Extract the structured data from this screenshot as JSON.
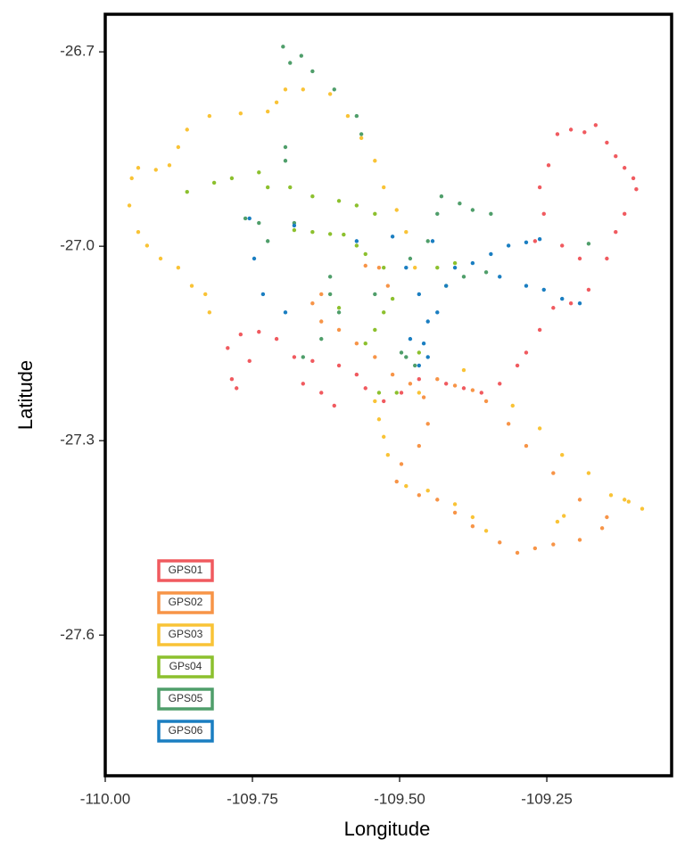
{
  "chart_data": {
    "type": "scatter",
    "x_label": "Longitude",
    "y_label": "Latitude",
    "xlim": [
      -110.0,
      -109.038
    ],
    "ylim": [
      -27.817,
      -26.642
    ],
    "xticks": [
      {
        "value": -110.0,
        "label": "-110.00"
      },
      {
        "value": -109.75,
        "label": "-109.75"
      },
      {
        "value": -109.5,
        "label": "-109.50"
      },
      {
        "value": -109.25,
        "label": "-109.25"
      }
    ],
    "yticks": [
      -26.7,
      {
        "value": -27.0,
        "label": "-27.0"
      },
      -27.3,
      -27.6
    ],
    "grid": false,
    "legend": "bottom-left",
    "series": [
      {
        "name": "GPS01",
        "color": "#f05a5f",
        "x": [
          -109.232,
          -109.209,
          -109.186,
          -109.167,
          -109.148,
          -109.133,
          -109.118,
          -109.103,
          -109.098,
          -109.118,
          -109.133,
          -109.148,
          -109.179,
          -109.209,
          -109.239,
          -109.262,
          -109.285,
          -109.3,
          -109.33,
          -109.361,
          -109.391,
          -109.421,
          -109.467,
          -109.497,
          -109.527,
          -109.573,
          -109.603,
          -109.648,
          -109.679,
          -109.709,
          -109.739,
          -109.77,
          -109.792,
          -109.785,
          -109.777,
          -109.755,
          -109.664,
          -109.633,
          -109.611,
          -109.558,
          -109.27,
          -109.255,
          -109.247,
          -109.262,
          -109.224,
          -109.194
        ],
        "values": [
          -26.827,
          -26.82,
          -26.824,
          -26.813,
          -26.84,
          -26.861,
          -26.879,
          -26.895,
          -26.912,
          -26.95,
          -26.978,
          -27.019,
          -27.067,
          -27.088,
          -27.095,
          -27.129,
          -27.164,
          -27.184,
          -27.212,
          -27.226,
          -27.219,
          -27.212,
          -27.205,
          -27.226,
          -27.239,
          -27.198,
          -27.184,
          -27.177,
          -27.171,
          -27.143,
          -27.132,
          -27.136,
          -27.157,
          -27.205,
          -27.219,
          -27.177,
          -27.212,
          -27.226,
          -27.246,
          -27.219,
          -26.992,
          -26.95,
          -26.875,
          -26.909,
          -26.999,
          -27.019
        ]
      },
      {
        "name": "GPS02",
        "color": "#f79447",
        "x": [
          -109.573,
          -109.558,
          -109.535,
          -109.52,
          -109.633,
          -109.648,
          -109.633,
          -109.603,
          -109.542,
          -109.512,
          -109.482,
          -109.436,
          -109.406,
          -109.376,
          -109.353,
          -109.315,
          -109.285,
          -109.239,
          -109.194,
          -109.148,
          -109.156,
          -109.194,
          -109.239,
          -109.27,
          -109.3,
          -109.33,
          -109.376,
          -109.406,
          -109.436,
          -109.467,
          -109.505,
          -109.497,
          -109.467,
          -109.452,
          -109.459
        ],
        "values": [
          -27.15,
          -27.03,
          -27.033,
          -27.061,
          -27.074,
          -27.088,
          -27.116,
          -27.129,
          -27.171,
          -27.198,
          -27.212,
          -27.205,
          -27.215,
          -27.222,
          -27.239,
          -27.274,
          -27.308,
          -27.35,
          -27.391,
          -27.418,
          -27.435,
          -27.453,
          -27.46,
          -27.466,
          -27.473,
          -27.457,
          -27.432,
          -27.411,
          -27.391,
          -27.384,
          -27.363,
          -27.336,
          -27.308,
          -27.274,
          -27.233
        ]
      },
      {
        "name": "GPS03",
        "color": "#f9c336",
        "x": [
          -109.694,
          -109.709,
          -109.724,
          -109.77,
          -109.823,
          -109.861,
          -109.876,
          -109.891,
          -109.914,
          -109.944,
          -109.955,
          -109.959,
          -109.944,
          -109.929,
          -109.906,
          -109.876,
          -109.853,
          -109.83,
          -109.823,
          -109.664,
          -109.618,
          -109.588,
          -109.565,
          -109.542,
          -109.527,
          -109.505,
          -109.489,
          -109.474,
          -109.542,
          -109.535,
          -109.527,
          -109.52,
          -109.489,
          -109.452,
          -109.406,
          -109.376,
          -109.353,
          -109.232,
          -109.221,
          -109.141,
          -109.111,
          -109.088,
          -109.118,
          -109.179,
          -109.224,
          -109.262,
          -109.308,
          -109.391,
          -109.467
        ],
        "values": [
          -26.758,
          -26.778,
          -26.792,
          -26.795,
          -26.799,
          -26.82,
          -26.847,
          -26.875,
          -26.882,
          -26.879,
          -26.895,
          -26.937,
          -26.978,
          -26.999,
          -27.019,
          -27.033,
          -27.061,
          -27.074,
          -27.102,
          -26.758,
          -26.765,
          -26.799,
          -26.833,
          -26.868,
          -26.909,
          -26.944,
          -26.978,
          -27.033,
          -27.239,
          -27.267,
          -27.294,
          -27.322,
          -27.37,
          -27.377,
          -27.398,
          -27.418,
          -27.439,
          -27.425,
          -27.416,
          -27.384,
          -27.394,
          -27.405,
          -27.391,
          -27.35,
          -27.322,
          -27.281,
          -27.246,
          -27.191,
          -27.226
        ]
      },
      {
        "name": "GPs04",
        "color": "#8cc02e",
        "x": [
          -109.861,
          -109.815,
          -109.785,
          -109.739,
          -109.724,
          -109.686,
          -109.648,
          -109.603,
          -109.573,
          -109.542,
          -109.679,
          -109.648,
          -109.618,
          -109.595,
          -109.573,
          -109.558,
          -109.527,
          -109.436,
          -109.406,
          -109.512,
          -109.527,
          -109.542,
          -109.535,
          -109.505,
          -109.467,
          -109.421,
          -109.558,
          -109.603
        ],
        "values": [
          -26.916,
          -26.902,
          -26.895,
          -26.886,
          -26.909,
          -26.909,
          -26.923,
          -26.93,
          -26.937,
          -26.95,
          -26.975,
          -26.978,
          -26.981,
          -26.982,
          -26.999,
          -27.012,
          -27.033,
          -27.033,
          -27.026,
          -27.081,
          -27.102,
          -27.129,
          -27.226,
          -27.226,
          -27.164,
          -27.061,
          -27.15,
          -27.095
        ]
      },
      {
        "name": "GPS05",
        "color": "#4f9e6a",
        "x": [
          -109.698,
          -109.686,
          -109.667,
          -109.648,
          -109.611,
          -109.573,
          -109.565,
          -109.694,
          -109.694,
          -109.429,
          -109.398,
          -109.376,
          -109.345,
          -109.179,
          -109.762,
          -109.739,
          -109.724,
          -109.679,
          -109.618,
          -109.618,
          -109.603,
          -109.664,
          -109.633,
          -109.482,
          -109.452,
          -109.436,
          -109.489,
          -109.474,
          -109.497,
          -109.391,
          -109.353,
          -109.542
        ],
        "values": [
          -26.692,
          -26.717,
          -26.706,
          -26.73,
          -26.758,
          -26.799,
          -26.827,
          -26.847,
          -26.868,
          -26.923,
          -26.934,
          -26.944,
          -26.95,
          -26.996,
          -26.957,
          -26.964,
          -26.992,
          -26.964,
          -27.047,
          -27.074,
          -27.102,
          -27.171,
          -27.143,
          -27.019,
          -26.992,
          -26.95,
          -27.171,
          -27.184,
          -27.164,
          -27.047,
          -27.04,
          -27.074
        ]
      },
      {
        "name": "GPS06",
        "color": "#1a7ec1",
        "x": [
          -109.679,
          -109.755,
          -109.747,
          -109.732,
          -109.694,
          -109.573,
          -109.512,
          -109.489,
          -109.467,
          -109.452,
          -109.459,
          -109.467,
          -109.452,
          -109.436,
          -109.421,
          -109.406,
          -109.376,
          -109.345,
          -109.315,
          -109.285,
          -109.262,
          -109.33,
          -109.285,
          -109.255,
          -109.224,
          -109.194,
          -109.444,
          -109.482
        ],
        "values": [
          -26.968,
          -26.957,
          -27.019,
          -27.074,
          -27.102,
          -26.992,
          -26.985,
          -27.033,
          -27.074,
          -27.116,
          -27.15,
          -27.184,
          -27.171,
          -27.102,
          -27.061,
          -27.033,
          -27.026,
          -27.012,
          -26.999,
          -26.994,
          -26.989,
          -27.047,
          -27.061,
          -27.067,
          -27.081,
          -27.088,
          -26.992,
          -27.143
        ]
      }
    ]
  }
}
